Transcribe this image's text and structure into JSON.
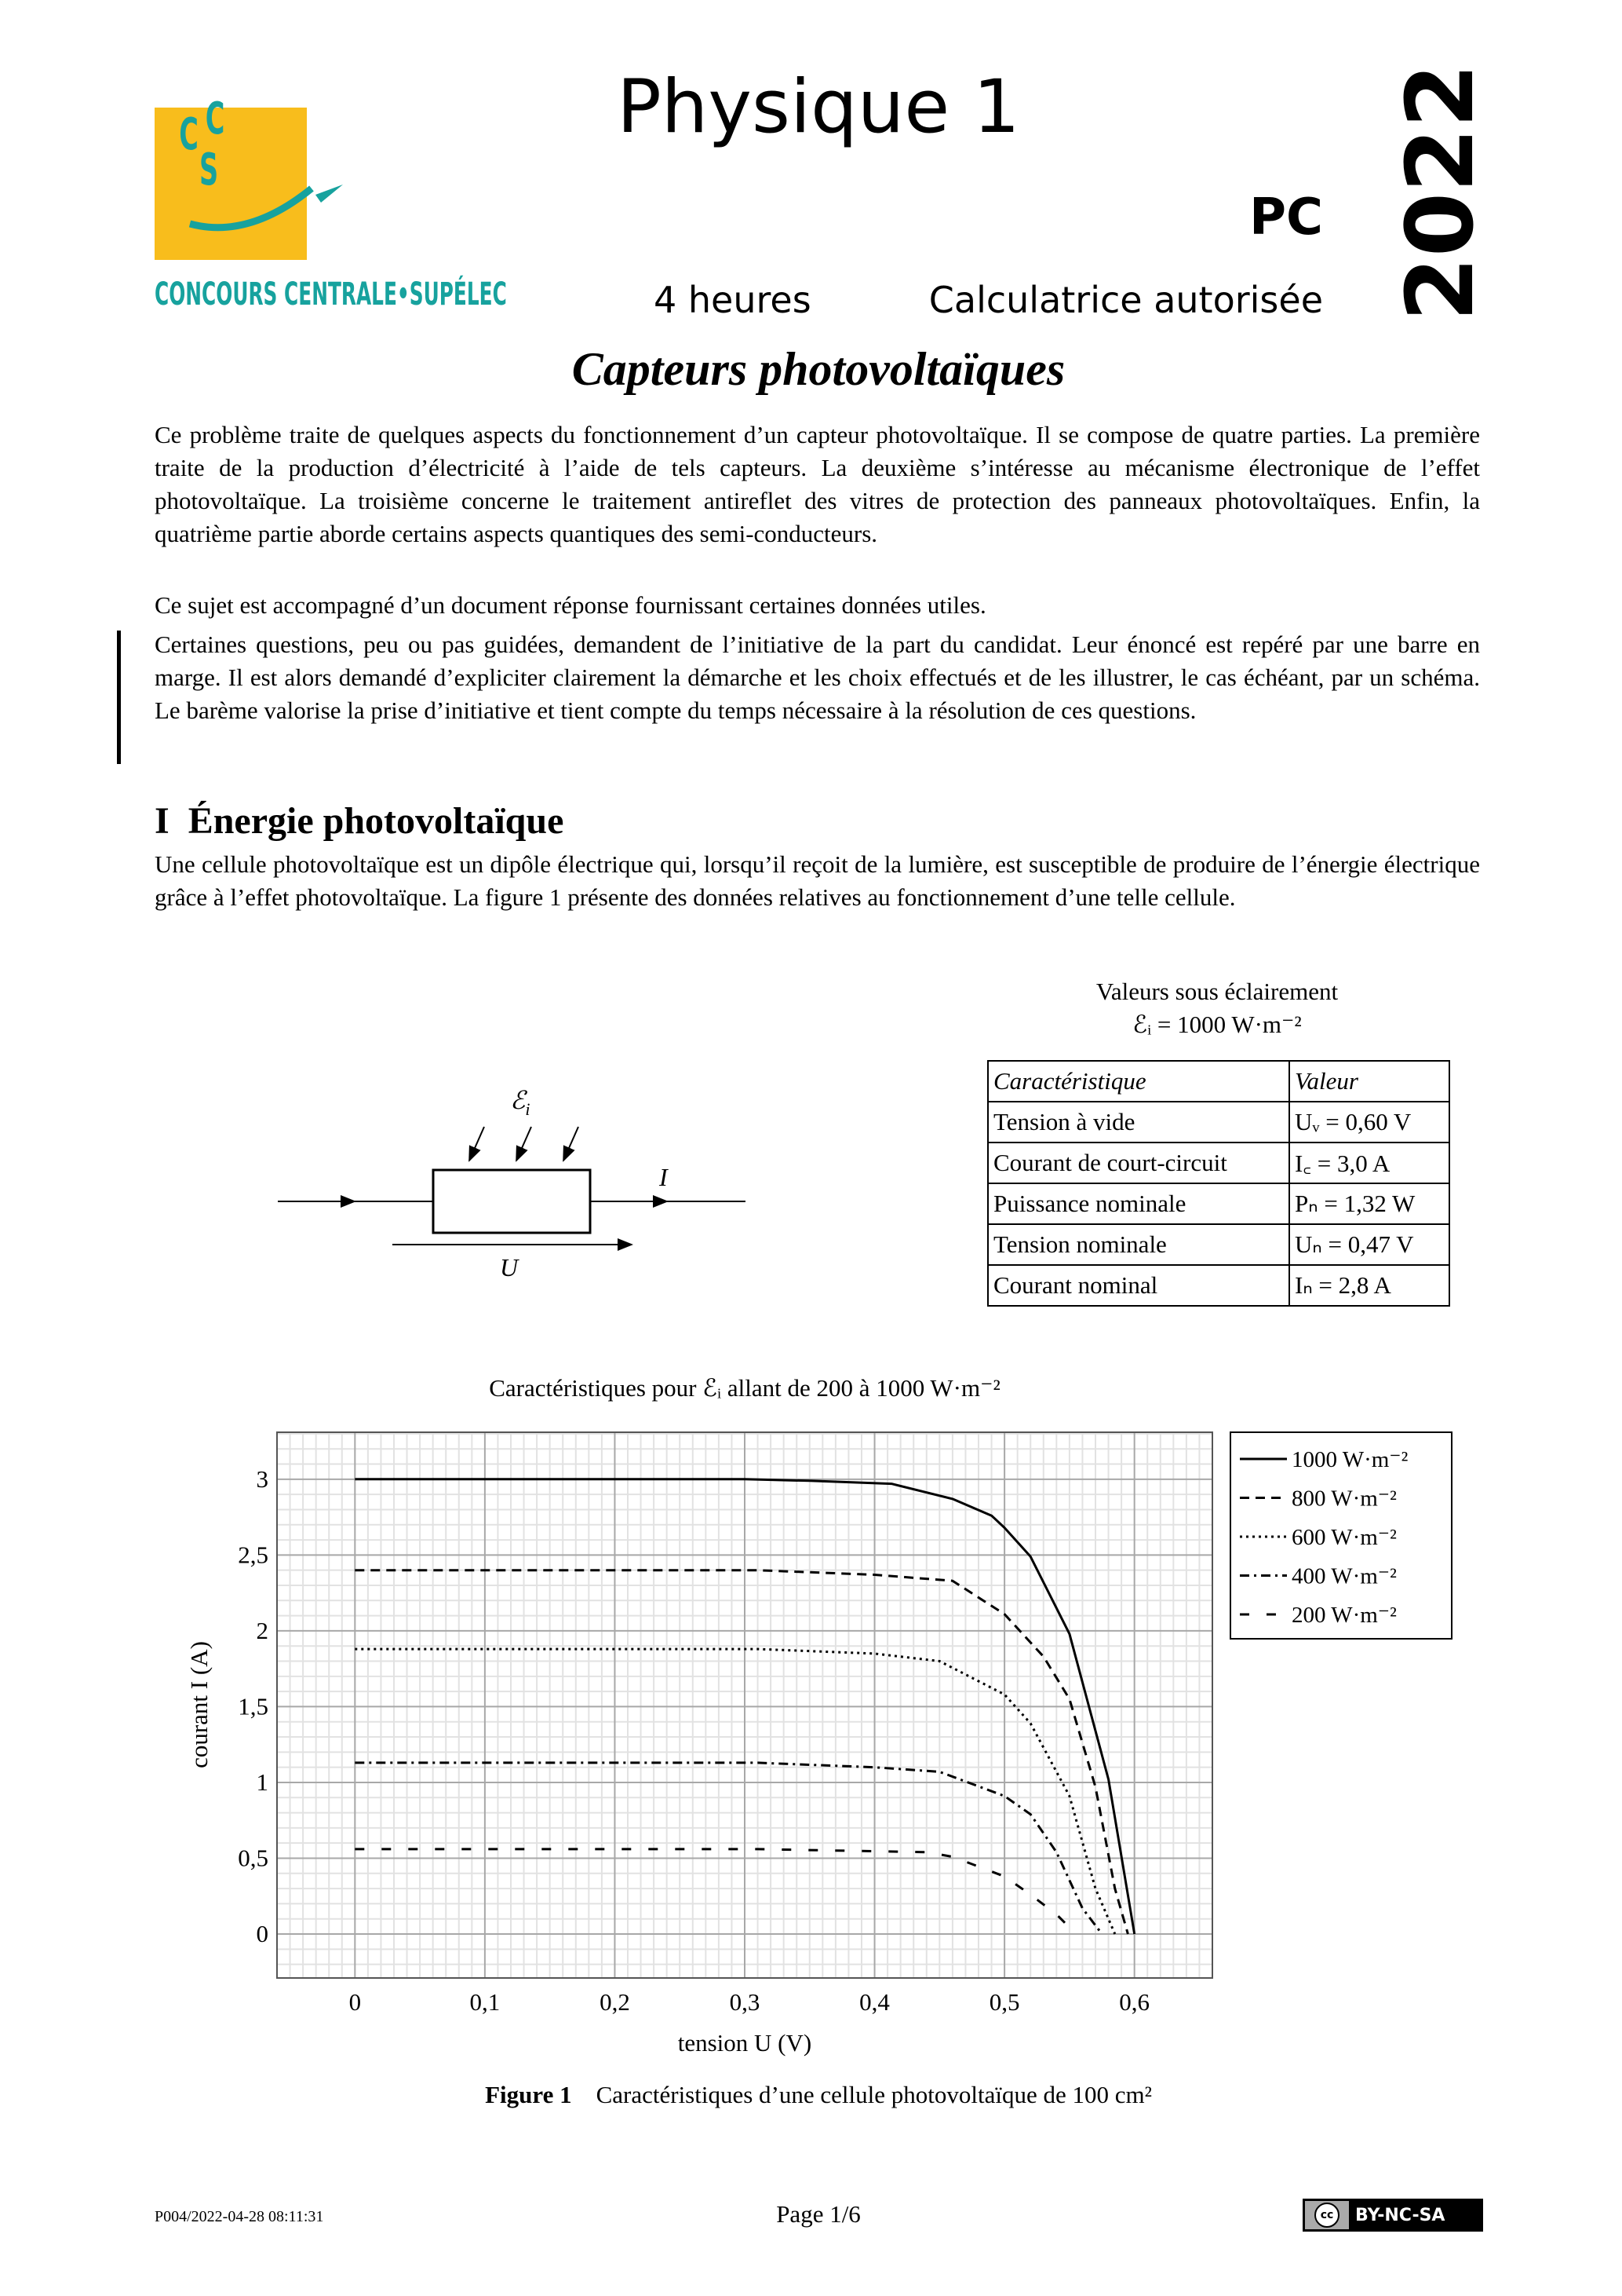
{
  "header": {
    "logo_letters": "CCS",
    "logo_caption": "CONCOURS CENTRALE•SUPÉLEC",
    "subject": "Physique 1",
    "track": "PC",
    "year": "2022",
    "duration": "4 heures",
    "calculator": "Calculatrice autorisée",
    "colors": {
      "logo_yellow": "#f8bd1c",
      "logo_teal": "#17a29e"
    }
  },
  "title": "Capteurs photovoltaïques",
  "intro": [
    "Ce problème traite de quelques aspects du fonctionnement d’un capteur photovoltaïque. Il se compose de quatre parties. La première traite de la production d’électricité à l’aide de tels capteurs. La deuxième s’intéresse au mécanisme électronique de l’effet photovoltaïque. La troisième concerne le traitement antireflet des vitres de protection des panneaux photovoltaïques. Enfin, la quatrième partie aborde certains aspects quantiques des semi-conducteurs.",
    "Ce sujet est accompagné d’un document réponse fournissant certaines données utiles.",
    "Certaines questions, peu ou pas guidées, demandent de l’initiative de la part du candidat. Leur énoncé est repéré par une barre en marge. Il est alors demandé d’expliciter clairement la démarche et les choix effectués et de les illustrer, le cas échéant, par un schéma. Le barème valorise la prise d’initiative et tient compte du temps nécessaire à la résolution de ces questions."
  ],
  "section": {
    "number": "I",
    "title": "Énergie photovoltaïque",
    "text": "Une cellule photovoltaïque est un dipôle électrique qui, lorsqu’il reçoit de la lumière, est susceptible de produire de l’énergie électrique grâce à l’effet photovoltaïque. La figure 1 présente des données relatives au fonctionnement d’une telle cellule."
  },
  "circuit": {
    "illumination_label": "ℰ",
    "illumination_sub": "i",
    "current_label": "I",
    "voltage_label": "U"
  },
  "values_table": {
    "caption_line1": "Valeurs sous éclairement",
    "caption_line2": "ℰᵢ = 1000 W·m⁻²",
    "headers": [
      "Caractéristique",
      "Valeur"
    ],
    "rows": [
      [
        "Tension à vide",
        "Uᵥ = 0,60 V"
      ],
      [
        "Courant de court-circuit",
        "I꜀ = 3,0 A"
      ],
      [
        "Puissance nominale",
        "Pₙ = 1,32 W"
      ],
      [
        "Tension nominale",
        "Uₙ = 0,47 V"
      ],
      [
        "Courant nominal",
        "Iₙ = 2,8 A"
      ]
    ]
  },
  "chart_data": {
    "type": "line",
    "title": "Caractéristiques pour ℰᵢ allant de 200 à 1000 W·m⁻²",
    "xlabel": "tension U (V)",
    "ylabel": "courant I (A)",
    "xlim": [
      -0.06,
      0.66
    ],
    "ylim": [
      -0.29,
      3.31
    ],
    "xticks": [
      "0",
      "0,1",
      "0,2",
      "0,3",
      "0,4",
      "0,5",
      "0,6"
    ],
    "xtick_values": [
      0,
      0.1,
      0.2,
      0.3,
      0.4,
      0.5,
      0.6
    ],
    "yticks": [
      "0",
      "0,5",
      "1",
      "1,5",
      "2",
      "2,5",
      "3"
    ],
    "ytick_values": [
      0,
      0.5,
      1,
      1.5,
      2,
      2.5,
      3
    ],
    "grid": true,
    "legend_position": "outside-right-top",
    "series": [
      {
        "name": "1000 W·m⁻²",
        "style": "solid",
        "x": [
          0,
          0.3,
          0.35,
          0.413,
          0.46,
          0.49,
          0.5,
          0.52,
          0.55,
          0.58,
          0.6
        ],
        "y": [
          3.0,
          3.0,
          2.99,
          2.97,
          2.87,
          2.76,
          2.68,
          2.49,
          1.98,
          1.02,
          0
        ]
      },
      {
        "name": "800 W·m⁻²",
        "style": "dashed",
        "x": [
          0,
          0.31,
          0.4,
          0.46,
          0.5,
          0.53,
          0.55,
          0.57,
          0.585,
          0.595
        ],
        "y": [
          2.4,
          2.4,
          2.37,
          2.33,
          2.11,
          1.83,
          1.55,
          0.97,
          0.3,
          0
        ]
      },
      {
        "name": "600 W·m⁻²",
        "style": "dotted",
        "x": [
          0,
          0.31,
          0.4,
          0.45,
          0.5,
          0.52,
          0.55,
          0.57,
          0.585
        ],
        "y": [
          1.88,
          1.88,
          1.85,
          1.8,
          1.58,
          1.39,
          0.91,
          0.3,
          0
        ]
      },
      {
        "name": "400 W·m⁻²",
        "style": "dashdot",
        "x": [
          0,
          0.31,
          0.4,
          0.45,
          0.5,
          0.52,
          0.54,
          0.56,
          0.575
        ],
        "y": [
          1.13,
          1.13,
          1.1,
          1.07,
          0.91,
          0.79,
          0.54,
          0.17,
          0
        ]
      },
      {
        "name": "200 W·m⁻²",
        "style": "loosely-dashed",
        "x": [
          0,
          0.31,
          0.44,
          0.46,
          0.5,
          0.52,
          0.54,
          0.555
        ],
        "y": [
          0.56,
          0.56,
          0.54,
          0.51,
          0.38,
          0.26,
          0.13,
          0
        ]
      }
    ]
  },
  "figure_caption": {
    "label": "Figure 1",
    "text": "Caractéristiques d’une cellule photovoltaïque de 100 cm²"
  },
  "footer": {
    "code": "P004/2022-04-28 08:11:31",
    "page": "Page 1/6",
    "license": "BY-NC-SA",
    "license_icon": "cc"
  }
}
